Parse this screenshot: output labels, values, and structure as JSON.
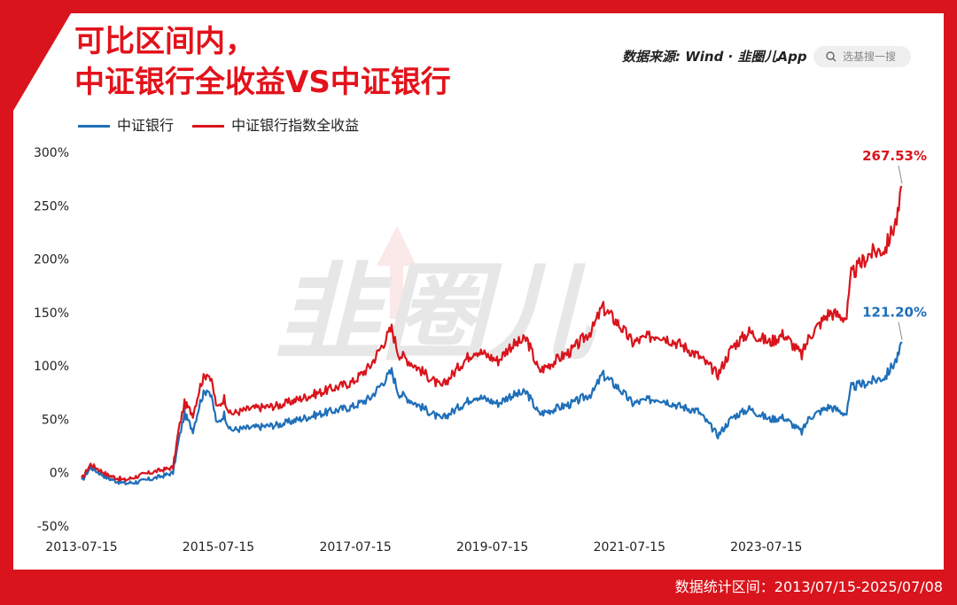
{
  "title_line1": "可比区间内，",
  "title_line2": "中证银行全收益VS中证银行",
  "source_label": "数据来源: Wind · 韭圈儿App",
  "search": {
    "icon": "search-icon",
    "placeholder": "选基搜一搜"
  },
  "footer_text": "数据统计区间：2013/07/15-2025/07/08",
  "watermark": "韭圈儿",
  "colors": {
    "frame": "#d9141c",
    "blue": "#1f6fb8",
    "red": "#d9141c"
  },
  "chart_data": {
    "type": "line",
    "x_ticks": [
      "2013-07-15",
      "2015-07-15",
      "2017-07-15",
      "2019-07-15",
      "2021-07-15",
      "2023-07-15"
    ],
    "y_ticks": [
      "300%",
      "250%",
      "200%",
      "150%",
      "100%",
      "50%",
      "0%",
      "-50%"
    ],
    "ylim": [
      -50,
      300
    ],
    "x_range": [
      "2013-07-15",
      "2025-07-08"
    ],
    "legend_position": "top-left",
    "grid": false,
    "series": [
      {
        "name": "中证银行",
        "color": "#1f6fb8",
        "end_label": "121.20%",
        "points": [
          [
            "2013-07-15",
            -8
          ],
          [
            "2013-09-01",
            5
          ],
          [
            "2013-12-01",
            -5
          ],
          [
            "2014-03-01",
            -10
          ],
          [
            "2014-06-01",
            -8
          ],
          [
            "2014-09-01",
            -4
          ],
          [
            "2014-11-15",
            0
          ],
          [
            "2014-12-15",
            30
          ],
          [
            "2015-01-15",
            55
          ],
          [
            "2015-03-01",
            40
          ],
          [
            "2015-04-15",
            70
          ],
          [
            "2015-05-20",
            80
          ],
          [
            "2015-06-15",
            65
          ],
          [
            "2015-07-08",
            45
          ],
          [
            "2015-08-15",
            55
          ],
          [
            "2015-09-15",
            40
          ],
          [
            "2016-01-01",
            42
          ],
          [
            "2016-06-01",
            45
          ],
          [
            "2017-01-01",
            55
          ],
          [
            "2017-07-01",
            62
          ],
          [
            "2017-10-01",
            70
          ],
          [
            "2018-01-24",
            95
          ],
          [
            "2018-03-01",
            75
          ],
          [
            "2018-06-01",
            65
          ],
          [
            "2018-10-15",
            50
          ],
          [
            "2019-02-15",
            65
          ],
          [
            "2019-04-15",
            72
          ],
          [
            "2019-08-15",
            65
          ],
          [
            "2019-10-15",
            72
          ],
          [
            "2020-01-15",
            75
          ],
          [
            "2020-03-20",
            55
          ],
          [
            "2020-06-15",
            60
          ],
          [
            "2020-09-15",
            65
          ],
          [
            "2021-01-01",
            75
          ],
          [
            "2021-02-20",
            92
          ],
          [
            "2021-05-15",
            80
          ],
          [
            "2021-08-01",
            65
          ],
          [
            "2021-12-15",
            70
          ],
          [
            "2022-04-15",
            62
          ],
          [
            "2022-07-15",
            58
          ],
          [
            "2022-10-30",
            35
          ],
          [
            "2023-01-15",
            52
          ],
          [
            "2023-04-15",
            60
          ],
          [
            "2023-08-01",
            50
          ],
          [
            "2023-10-15",
            52
          ],
          [
            "2024-01-20",
            38
          ],
          [
            "2024-03-01",
            52
          ],
          [
            "2024-06-15",
            62
          ],
          [
            "2024-09-15",
            55
          ],
          [
            "2024-10-10",
            80
          ],
          [
            "2025-01-15",
            85
          ],
          [
            "2025-04-10",
            90
          ],
          [
            "2025-06-15",
            108
          ],
          [
            "2025-07-08",
            121.2
          ]
        ]
      },
      {
        "name": "中证银行指数全收益",
        "color": "#d9141c",
        "end_label": "267.53%",
        "points": [
          [
            "2013-07-15",
            -6
          ],
          [
            "2013-09-01",
            8
          ],
          [
            "2013-12-01",
            -2
          ],
          [
            "2014-03-01",
            -7
          ],
          [
            "2014-06-01",
            -2
          ],
          [
            "2014-09-01",
            2
          ],
          [
            "2014-11-15",
            5
          ],
          [
            "2014-12-15",
            40
          ],
          [
            "2015-01-15",
            65
          ],
          [
            "2015-03-01",
            55
          ],
          [
            "2015-04-15",
            85
          ],
          [
            "2015-05-20",
            95
          ],
          [
            "2015-06-15",
            80
          ],
          [
            "2015-07-08",
            60
          ],
          [
            "2015-08-15",
            70
          ],
          [
            "2015-09-15",
            55
          ],
          [
            "2016-01-01",
            60
          ],
          [
            "2016-06-01",
            63
          ],
          [
            "2017-01-01",
            75
          ],
          [
            "2017-07-01",
            85
          ],
          [
            "2017-10-01",
            100
          ],
          [
            "2018-01-24",
            135
          ],
          [
            "2018-03-01",
            112
          ],
          [
            "2018-06-01",
            100
          ],
          [
            "2018-10-15",
            80
          ],
          [
            "2019-02-15",
            105
          ],
          [
            "2019-04-15",
            115
          ],
          [
            "2019-08-15",
            105
          ],
          [
            "2019-10-15",
            118
          ],
          [
            "2020-01-15",
            125
          ],
          [
            "2020-03-20",
            95
          ],
          [
            "2020-06-15",
            105
          ],
          [
            "2020-09-15",
            115
          ],
          [
            "2021-01-01",
            135
          ],
          [
            "2021-02-20",
            155
          ],
          [
            "2021-05-15",
            140
          ],
          [
            "2021-08-01",
            122
          ],
          [
            "2021-12-15",
            130
          ],
          [
            "2022-04-15",
            120
          ],
          [
            "2022-07-15",
            110
          ],
          [
            "2022-10-30",
            92
          ],
          [
            "2023-01-15",
            118
          ],
          [
            "2023-04-15",
            132
          ],
          [
            "2023-08-01",
            122
          ],
          [
            "2023-10-15",
            130
          ],
          [
            "2024-01-20",
            110
          ],
          [
            "2024-03-01",
            128
          ],
          [
            "2024-06-15",
            150
          ],
          [
            "2024-09-15",
            145
          ],
          [
            "2024-10-10",
            185
          ],
          [
            "2025-01-15",
            205
          ],
          [
            "2025-04-10",
            210
          ],
          [
            "2025-06-15",
            240
          ],
          [
            "2025-07-08",
            267.53
          ]
        ]
      }
    ]
  }
}
